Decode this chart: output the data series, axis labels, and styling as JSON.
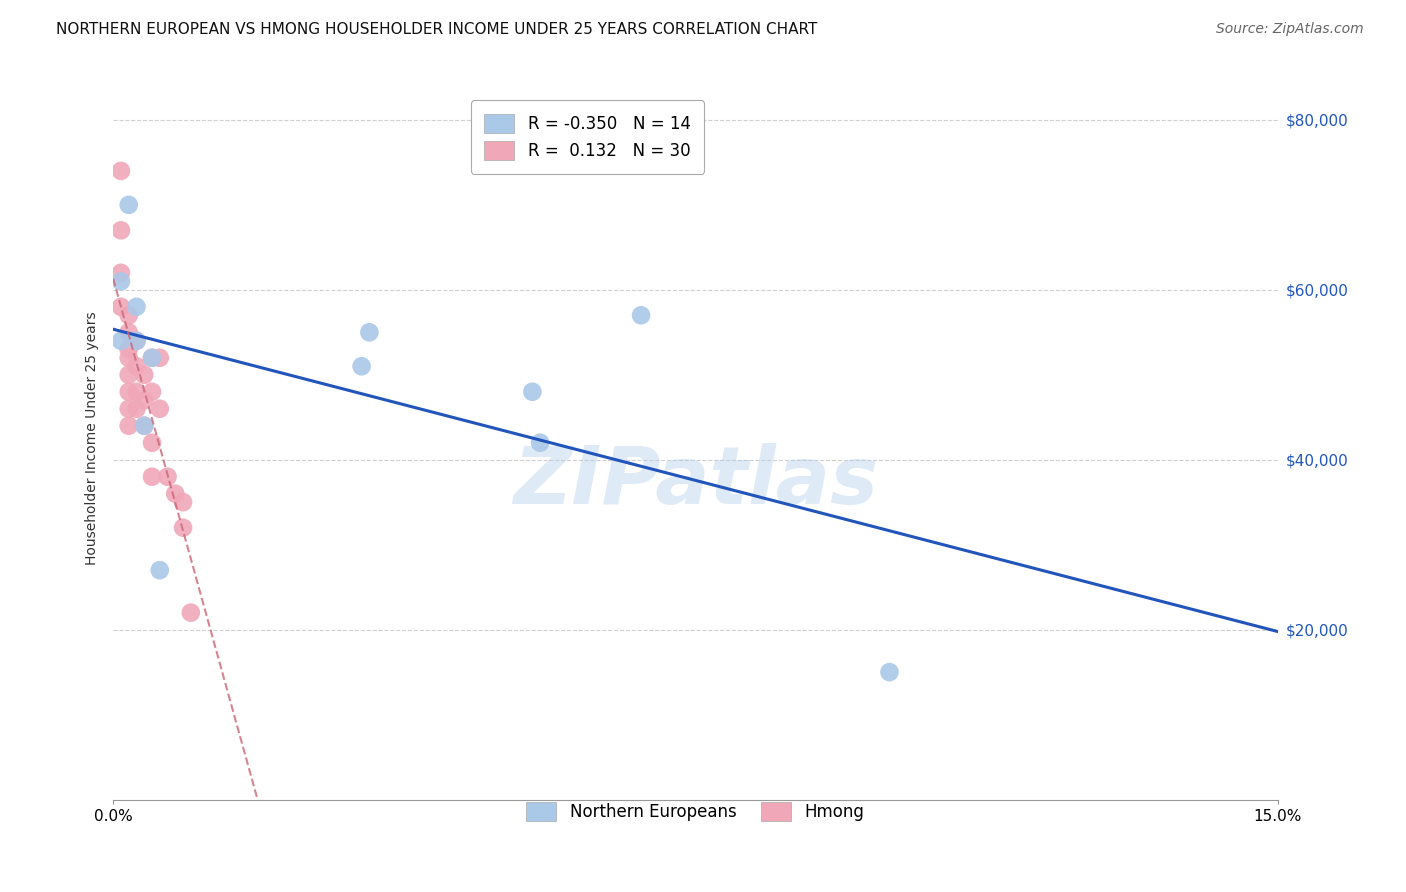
{
  "title": "NORTHERN EUROPEAN VS HMONG HOUSEHOLDER INCOME UNDER 25 YEARS CORRELATION CHART",
  "source": "Source: ZipAtlas.com",
  "ylabel": "Householder Income Under 25 years",
  "xlim": [
    0.0,
    0.15
  ],
  "ylim": [
    0,
    85000
  ],
  "ytick_labels": [
    "$20,000",
    "$40,000",
    "$60,000",
    "$80,000"
  ],
  "ytick_values": [
    20000,
    40000,
    60000,
    80000
  ],
  "background_color": "#ffffff",
  "grid_color": "#d0d0d0",
  "watermark": "ZIPatlas",
  "blue_R": -0.35,
  "blue_N": 14,
  "pink_R": 0.132,
  "pink_N": 30,
  "blue_color": "#aac8e8",
  "pink_color": "#f0a8b8",
  "blue_line_color": "#2255bb",
  "pink_line_color": "#cc6677",
  "northern_european_x": [
    0.001,
    0.001,
    0.002,
    0.003,
    0.003,
    0.004,
    0.005,
    0.006,
    0.032,
    0.033,
    0.054,
    0.055,
    0.068,
    0.1
  ],
  "northern_european_y": [
    54000,
    61000,
    70000,
    54000,
    58000,
    44000,
    52000,
    27000,
    51000,
    55000,
    48000,
    42000,
    57000,
    15000
  ],
  "hmong_x": [
    0.001,
    0.001,
    0.001,
    0.001,
    0.002,
    0.002,
    0.002,
    0.002,
    0.002,
    0.002,
    0.002,
    0.002,
    0.003,
    0.003,
    0.003,
    0.003,
    0.004,
    0.004,
    0.004,
    0.005,
    0.005,
    0.005,
    0.005,
    0.006,
    0.006,
    0.007,
    0.008,
    0.009,
    0.009,
    0.01
  ],
  "hmong_y": [
    74000,
    67000,
    62000,
    58000,
    57000,
    55000,
    53000,
    52000,
    50000,
    48000,
    46000,
    44000,
    54000,
    51000,
    48000,
    46000,
    50000,
    47000,
    44000,
    52000,
    48000,
    42000,
    38000,
    52000,
    46000,
    38000,
    36000,
    35000,
    32000,
    22000
  ],
  "title_fontsize": 11,
  "axis_fontsize": 11,
  "legend_fontsize": 12,
  "source_fontsize": 10
}
